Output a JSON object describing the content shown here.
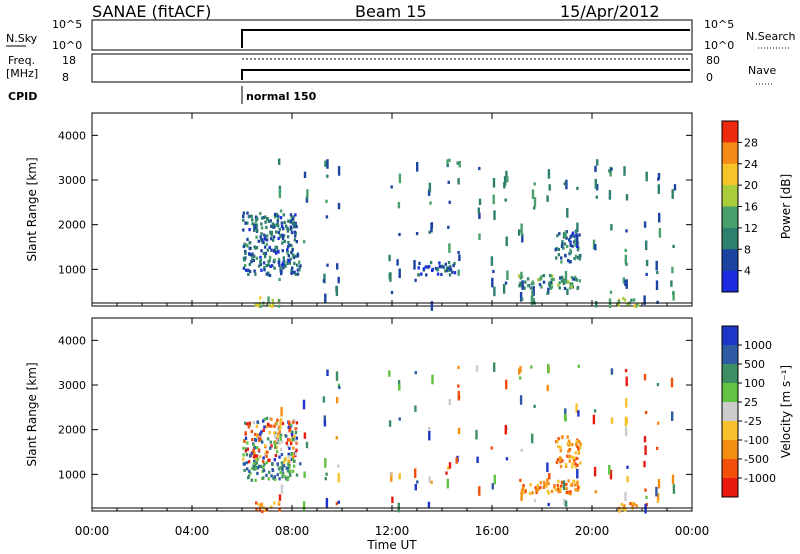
{
  "header": {
    "station": "SANAE (fitACF)",
    "beam": "Beam 15",
    "date": "15/Apr/2012"
  },
  "colors": {
    "power": [
      "#1b2be0",
      "#1a44a0",
      "#2f7f6e",
      "#49a06c",
      "#aacb3a",
      "#f7c52a",
      "#f58a16",
      "#ed2a0e"
    ],
    "velocity": [
      "#e8190f",
      "#f14f0a",
      "#f58f14",
      "#f8c22e",
      "#cccccc",
      "#62c242",
      "#3d8f63",
      "#2e5aa4",
      "#1e36c8"
    ]
  },
  "panels": {
    "nsky": {
      "label": "N.Sky",
      "right_label": "N.Search",
      "left_ticks": [
        "10^5",
        "10^0"
      ],
      "right_ticks": [
        "10^5",
        "10^0"
      ]
    },
    "freq": {
      "label_line1": "Freq.",
      "label_line2": "[MHz]",
      "right_label": "Nave",
      "left_ticks": [
        "18",
        "8"
      ],
      "right_ticks": [
        "80",
        "0"
      ]
    },
    "cpid": {
      "label": "CPID",
      "mode": "normal 150"
    }
  },
  "chart_data": [
    {
      "type": "heatmap",
      "title": "Power",
      "ylabel": "Slant Range [km]",
      "xlabel": "Time UT",
      "xlim": [
        "00:00",
        "24:00"
      ],
      "ylim": [
        180,
        4500
      ],
      "y_ticks": [
        "1000",
        "2000",
        "3000",
        "4000"
      ],
      "x_ticks": [
        "00:00",
        "04:00",
        "08:00",
        "12:00",
        "16:00",
        "20:00",
        "00:00"
      ],
      "colorbar": {
        "label": "Power [dB]",
        "tick_labels": [
          "4",
          "8",
          "12",
          "16",
          "20",
          "24",
          "28"
        ],
        "range": [
          0,
          32
        ]
      },
      "data_start_hour": 6.0,
      "echo_regions": [
        {
          "hours": [
            6.0,
            8.2
          ],
          "range_km": [
            1300,
            2300
          ],
          "level": 0.15
        },
        {
          "hours": [
            6.0,
            8.3
          ],
          "range_km": [
            900,
            1300
          ],
          "level": 0.15
        },
        {
          "hours": [
            6.5,
            7.5
          ],
          "range_km": [
            200,
            400
          ],
          "level": 0.5
        },
        {
          "hours": [
            13.0,
            14.5
          ],
          "range_km": [
            900,
            1200
          ],
          "level": 0.1
        },
        {
          "hours": [
            17.0,
            19.5
          ],
          "range_km": [
            600,
            900
          ],
          "level": 0.3
        },
        {
          "hours": [
            18.5,
            19.5
          ],
          "range_km": [
            1200,
            1900
          ],
          "level": 0.15
        },
        {
          "hours": [
            21.0,
            21.8
          ],
          "range_km": [
            200,
            400
          ],
          "level": 0.45
        }
      ]
    },
    {
      "type": "heatmap",
      "title": "Velocity",
      "ylabel": "Slant Range [km]",
      "xlabel": "Time UT",
      "xlim": [
        "00:00",
        "24:00"
      ],
      "ylim": [
        180,
        4500
      ],
      "y_ticks": [
        "1000",
        "2000",
        "3000",
        "4000"
      ],
      "x_ticks": [
        "00:00",
        "04:00",
        "08:00",
        "12:00",
        "16:00",
        "20:00",
        "00:00"
      ],
      "colorbar": {
        "label": "Velocity [m s⁻¹]",
        "tick_labels": [
          "1000",
          "500",
          "100",
          "25",
          "-25",
          "-100",
          "-500",
          "-1000"
        ]
      },
      "data_start_hour": 6.0,
      "echo_regions": [
        {
          "hours": [
            6.0,
            8.2
          ],
          "range_km": [
            1300,
            2300
          ],
          "level": "mixed"
        },
        {
          "hours": [
            6.0,
            8.3
          ],
          "range_km": [
            900,
            1300
          ],
          "level": "positive"
        },
        {
          "hours": [
            6.5,
            7.5
          ],
          "range_km": [
            200,
            400
          ],
          "level": "negative"
        },
        {
          "hours": [
            17.0,
            19.5
          ],
          "range_km": [
            600,
            900
          ],
          "level": "negative"
        },
        {
          "hours": [
            18.5,
            19.5
          ],
          "range_km": [
            1200,
            1900
          ],
          "level": "negative"
        },
        {
          "hours": [
            21.0,
            21.8
          ],
          "range_km": [
            200,
            400
          ],
          "level": "negative"
        }
      ]
    }
  ],
  "xlabel": "Time UT"
}
